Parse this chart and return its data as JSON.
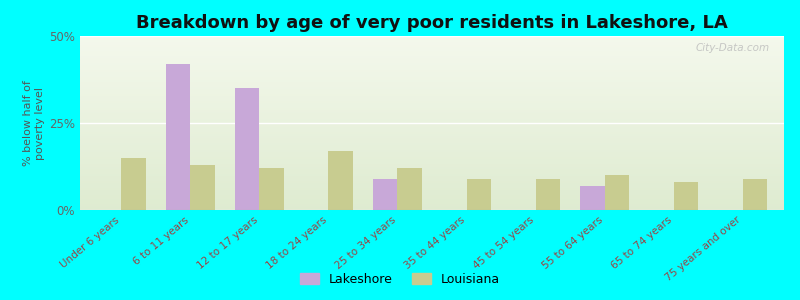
{
  "title": "Breakdown by age of very poor residents in Lakeshore, LA",
  "ylabel": "% below half of\npoverty level",
  "categories": [
    "Under 6 years",
    "6 to 11 years",
    "12 to 17 years",
    "18 to 24 years",
    "25 to 34 years",
    "35 to 44 years",
    "45 to 54 years",
    "55 to 64 years",
    "65 to 74 years",
    "75 years and over"
  ],
  "lakeshore_values": [
    0,
    42,
    35,
    0,
    9,
    0,
    0,
    7,
    0,
    0
  ],
  "louisiana_values": [
    15,
    13,
    12,
    17,
    12,
    9,
    9,
    10,
    8,
    9
  ],
  "lakeshore_color": "#c8a8d8",
  "louisiana_color": "#c8cc90",
  "ylim": [
    0,
    50
  ],
  "ytick_labels": [
    "0%",
    "25%",
    "50%"
  ],
  "ytick_values": [
    0,
    25,
    50
  ],
  "bg_color_top": "#f4f8ec",
  "bg_color_bottom": "#deebd0",
  "outer_background": "#00ffff",
  "title_fontsize": 13,
  "bar_width": 0.35,
  "legend_labels": [
    "Lakeshore",
    "Louisiana"
  ],
  "watermark": "City-Data.com",
  "xtick_color": "#994444",
  "ytick_color": "#666666",
  "grid_color": "#ffffff"
}
